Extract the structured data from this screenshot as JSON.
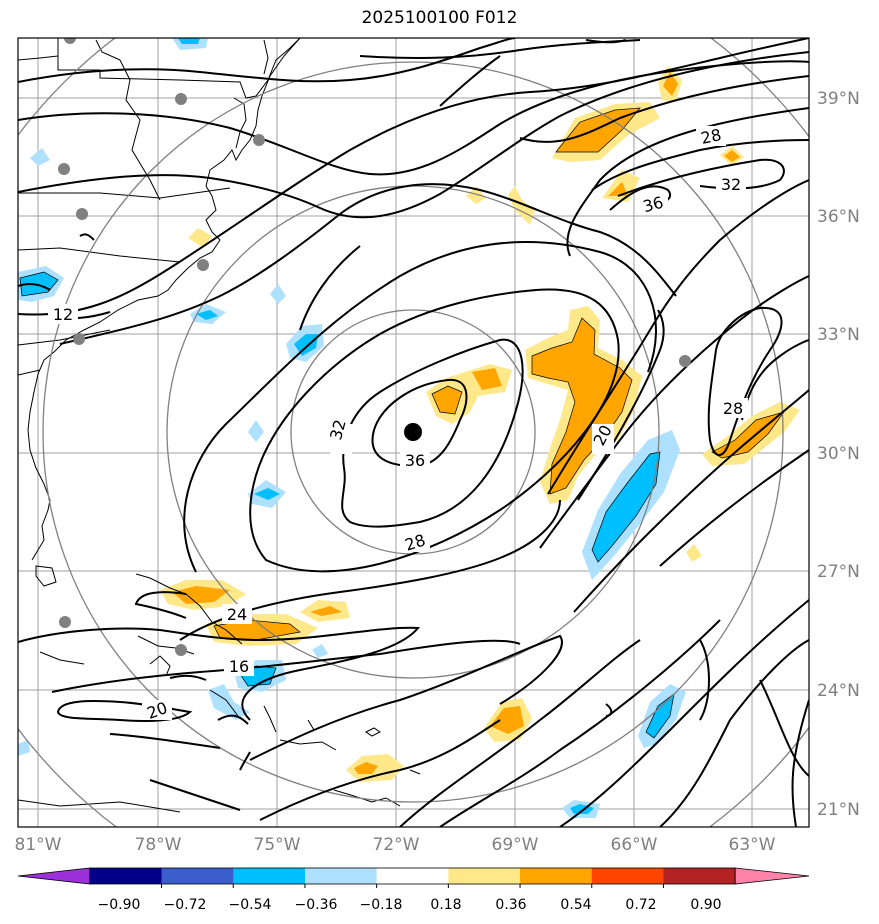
{
  "title": "2025100100 F012",
  "lon_labels": [
    "81°W",
    "78°W",
    "75°W",
    "72°W",
    "69°W",
    "66°W",
    "63°W"
  ],
  "lat_labels": [
    "39°N",
    "36°N",
    "33°N",
    "30°N",
    "27°N",
    "24°N",
    "21°N"
  ],
  "contour_labels": [
    "12",
    "24",
    "16",
    "20",
    "32",
    "36",
    "28",
    "20",
    "28",
    "32",
    "36",
    "28"
  ],
  "colorbar": {
    "ticks": [
      "−0.90",
      "−0.72",
      "−0.54",
      "−0.36",
      "−0.18",
      "0.18",
      "0.36",
      "0.54",
      "0.72",
      "0.90"
    ],
    "colors": [
      "#9b30d9",
      "#00008b",
      "#3a5fcd",
      "#00bfff",
      "#aee0ff",
      "#ffffff",
      "#ffe88a",
      "#ffa500",
      "#ff4500",
      "#b22222",
      "#ff82ab"
    ]
  },
  "storm_center": {
    "lon": -71.6,
    "lat": 30.5
  },
  "range_rings": 4
}
